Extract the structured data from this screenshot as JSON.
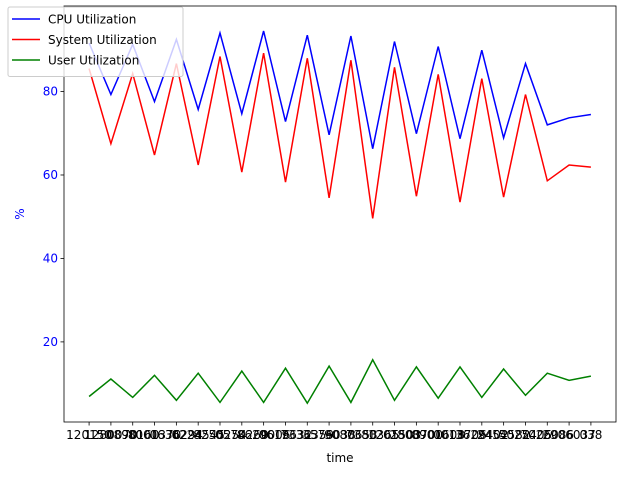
{
  "chart_data": {
    "type": "line",
    "x_label": "time",
    "y_label": "%",
    "categories": [
      "120150",
      "1280070",
      "0890160",
      "8001370",
      "0636294",
      "0224545",
      "8250254",
      "0570260",
      "8629006",
      "0619632",
      "7336359",
      "3576038",
      "9080653",
      "7380365",
      "1201503",
      "2800700",
      "8901608",
      "0013706",
      "3629402",
      "2454582",
      "5025405",
      "7026086",
      "2906037",
      "038"
    ],
    "series": [
      {
        "name": "CPU Utilization",
        "color": "#0000ff",
        "values": [
          91.6,
          79.3,
          91.3,
          77.6,
          92.5,
          75.7,
          94.0,
          74.7,
          94.5,
          72.8,
          93.5,
          69.6,
          93.3,
          66.3,
          92.0,
          69.9,
          90.8,
          68.7,
          89.9,
          68.9,
          86.7,
          72.0,
          73.7,
          74.5
        ]
      },
      {
        "name": "System Utilization",
        "color": "#ff0000",
        "values": [
          85.5,
          67.5,
          84.3,
          64.8,
          86.7,
          62.4,
          88.4,
          60.7,
          89.2,
          58.3,
          88.0,
          54.5,
          87.5,
          49.6,
          85.8,
          54.9,
          84.1,
          53.5,
          83.1,
          54.7,
          79.3,
          58.6,
          62.4,
          61.9
        ]
      },
      {
        "name": "User Utilization",
        "color": "#008000",
        "values": [
          6.9,
          11.1,
          6.7,
          12.0,
          6.0,
          12.5,
          5.5,
          13.0,
          5.5,
          13.7,
          5.3,
          14.2,
          5.5,
          15.7,
          6.0,
          14.0,
          6.5,
          14.0,
          6.7,
          13.5,
          7.2,
          12.5,
          10.8,
          11.8
        ]
      }
    ],
    "ylim": [
      0.8,
      100.5
    ],
    "yticks": [
      20,
      40,
      60,
      80
    ],
    "y_axis_color": "#0000ff",
    "legend": "upper left",
    "grid": false
  }
}
